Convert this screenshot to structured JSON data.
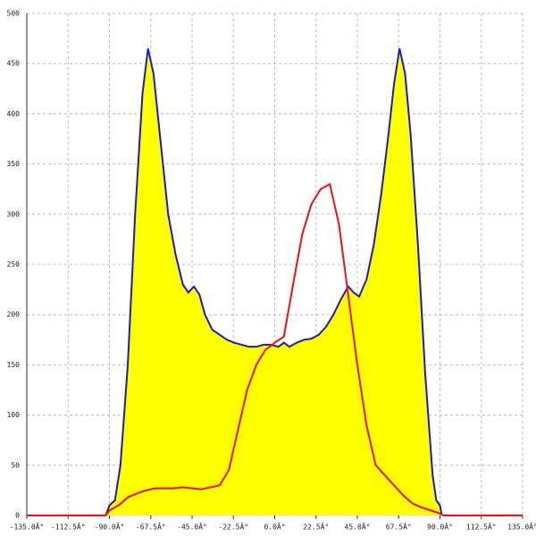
{
  "chart_data": {
    "type": "area",
    "xlim": [
      -135,
      135
    ],
    "ylim": [
      0,
      500
    ],
    "xticks": [
      {
        "value": -135,
        "label": "-135.0Â°"
      },
      {
        "value": -112.5,
        "label": "-112.5Â°"
      },
      {
        "value": -90,
        "label": "-90.0Â°"
      },
      {
        "value": -67.5,
        "label": "-67.5Â°"
      },
      {
        "value": -45,
        "label": "-45.0Â°"
      },
      {
        "value": -22.5,
        "label": "-22.5Â°"
      },
      {
        "value": 0,
        "label": "0.0Â°"
      },
      {
        "value": 22.5,
        "label": "22.5Â°"
      },
      {
        "value": 45,
        "label": "45.0Â°"
      },
      {
        "value": 67.5,
        "label": "67.5Â°"
      },
      {
        "value": 90,
        "label": "90.0Â°"
      },
      {
        "value": 112.5,
        "label": "112.5Â°"
      },
      {
        "value": 135,
        "label": "135.0Â°"
      }
    ],
    "yticks": [
      0,
      50,
      100,
      150,
      200,
      250,
      300,
      350,
      400,
      450,
      500
    ],
    "grid": true,
    "series": [
      {
        "color": "#1a1acc",
        "fill": "#ffff00",
        "x": [
          -92,
          -90,
          -87,
          -84,
          -80,
          -76,
          -72,
          -69,
          -66,
          -62,
          -58,
          -54,
          -50,
          -47,
          -44,
          -41,
          -38,
          -34,
          -30,
          -26,
          -22,
          -18,
          -14,
          -10,
          -6,
          -2,
          2,
          5,
          8,
          12,
          16,
          20,
          24,
          28,
          32,
          36,
          40,
          43,
          46,
          50,
          54,
          58,
          62,
          65,
          68,
          71,
          74,
          78,
          82,
          86,
          88,
          90,
          91
        ],
        "values": [
          0,
          10,
          15,
          50,
          150,
          300,
          420,
          465,
          440,
          370,
          300,
          260,
          230,
          222,
          228,
          220,
          200,
          185,
          180,
          175,
          172,
          170,
          168,
          168,
          170,
          170,
          168,
          172,
          168,
          172,
          175,
          176,
          180,
          188,
          200,
          215,
          228,
          222,
          218,
          235,
          270,
          320,
          380,
          430,
          465,
          440,
          380,
          270,
          140,
          40,
          15,
          10,
          0
        ]
      },
      {
        "color": "#ee1111",
        "x": [
          -135,
          -92,
          -90,
          -85,
          -80,
          -75,
          -70,
          -65,
          -60,
          -55,
          -50,
          -45,
          -40,
          -35,
          -30,
          -25,
          -20,
          -15,
          -10,
          -5,
          0,
          5,
          10,
          15,
          20,
          25,
          30,
          35,
          40,
          45,
          50,
          55,
          60,
          65,
          70,
          75,
          80,
          85,
          90,
          92,
          135
        ],
        "values": [
          0,
          0,
          5,
          10,
          18,
          22,
          25,
          27,
          27,
          27,
          28,
          27,
          26,
          28,
          30,
          45,
          85,
          125,
          150,
          165,
          172,
          178,
          230,
          280,
          310,
          325,
          330,
          290,
          220,
          150,
          90,
          50,
          40,
          30,
          20,
          12,
          8,
          5,
          2,
          0,
          0
        ]
      }
    ]
  }
}
